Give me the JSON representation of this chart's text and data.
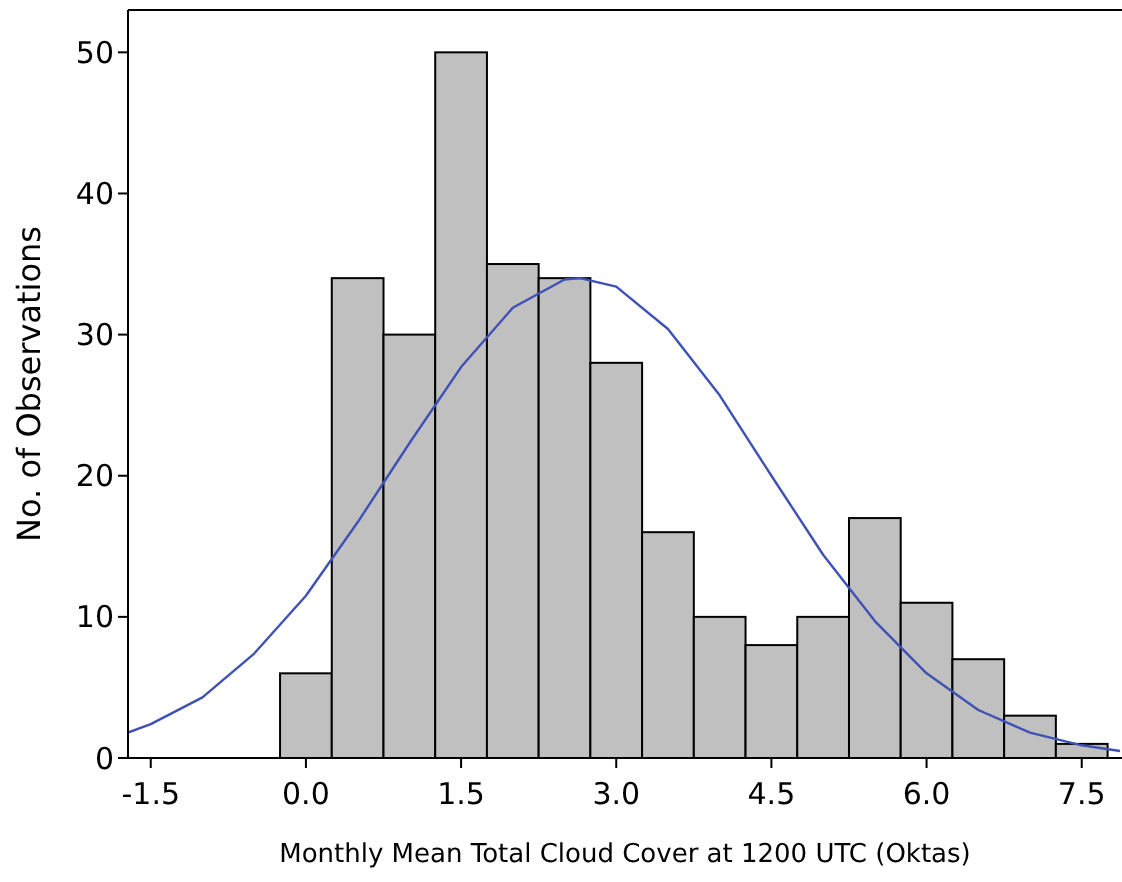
{
  "chart_data": {
    "type": "histogram",
    "xlabel": "Monthly Mean Total Cloud Cover at 1200 UTC (Oktas)",
    "ylabel": "No. of Observations",
    "bins": [
      -0.25,
      0.25,
      0.75,
      1.25,
      1.75,
      2.25,
      2.75,
      3.25,
      3.75,
      4.25,
      4.75,
      5.25,
      5.75,
      6.25,
      6.75,
      7.25,
      7.75
    ],
    "values": [
      6,
      34,
      30,
      50,
      35,
      34,
      28,
      16,
      10,
      8,
      10,
      17,
      11,
      7,
      3,
      1
    ],
    "color": "#c0c0c0",
    "series": [
      {
        "type": "line",
        "color": "#3f51b5",
        "x": [
          -1.72,
          -1.5,
          -1,
          -0.5,
          0,
          0.5,
          1,
          1.5,
          2,
          2.5,
          2.65,
          3,
          3.5,
          4,
          4.5,
          5,
          5.5,
          6,
          6.5,
          7,
          7.5,
          7.87
        ],
        "values": [
          1.8,
          2.4,
          4.3,
          7.4,
          11.5,
          16.7,
          22.3,
          27.7,
          31.9,
          33.9,
          34,
          33.4,
          30.4,
          25.7,
          20,
          14.4,
          9.7,
          6,
          3.4,
          1.8,
          0.9,
          0.5
        ]
      }
    ],
    "xlim": [
      -1.72,
      7.87
    ],
    "ylim": [
      0,
      53
    ],
    "xticks": [
      {
        "value": -1.5,
        "label": "-1.5"
      },
      {
        "value": 0,
        "label": "0.0"
      },
      {
        "value": 1.5,
        "label": "1.5"
      },
      {
        "value": 3,
        "label": "3.0"
      },
      {
        "value": 4.5,
        "label": "4.5"
      },
      {
        "value": 6,
        "label": "6.0"
      },
      {
        "value": 7.5,
        "label": "7.5"
      }
    ],
    "yticks": [
      0,
      10,
      20,
      30,
      40,
      50
    ],
    "grid": false
  }
}
